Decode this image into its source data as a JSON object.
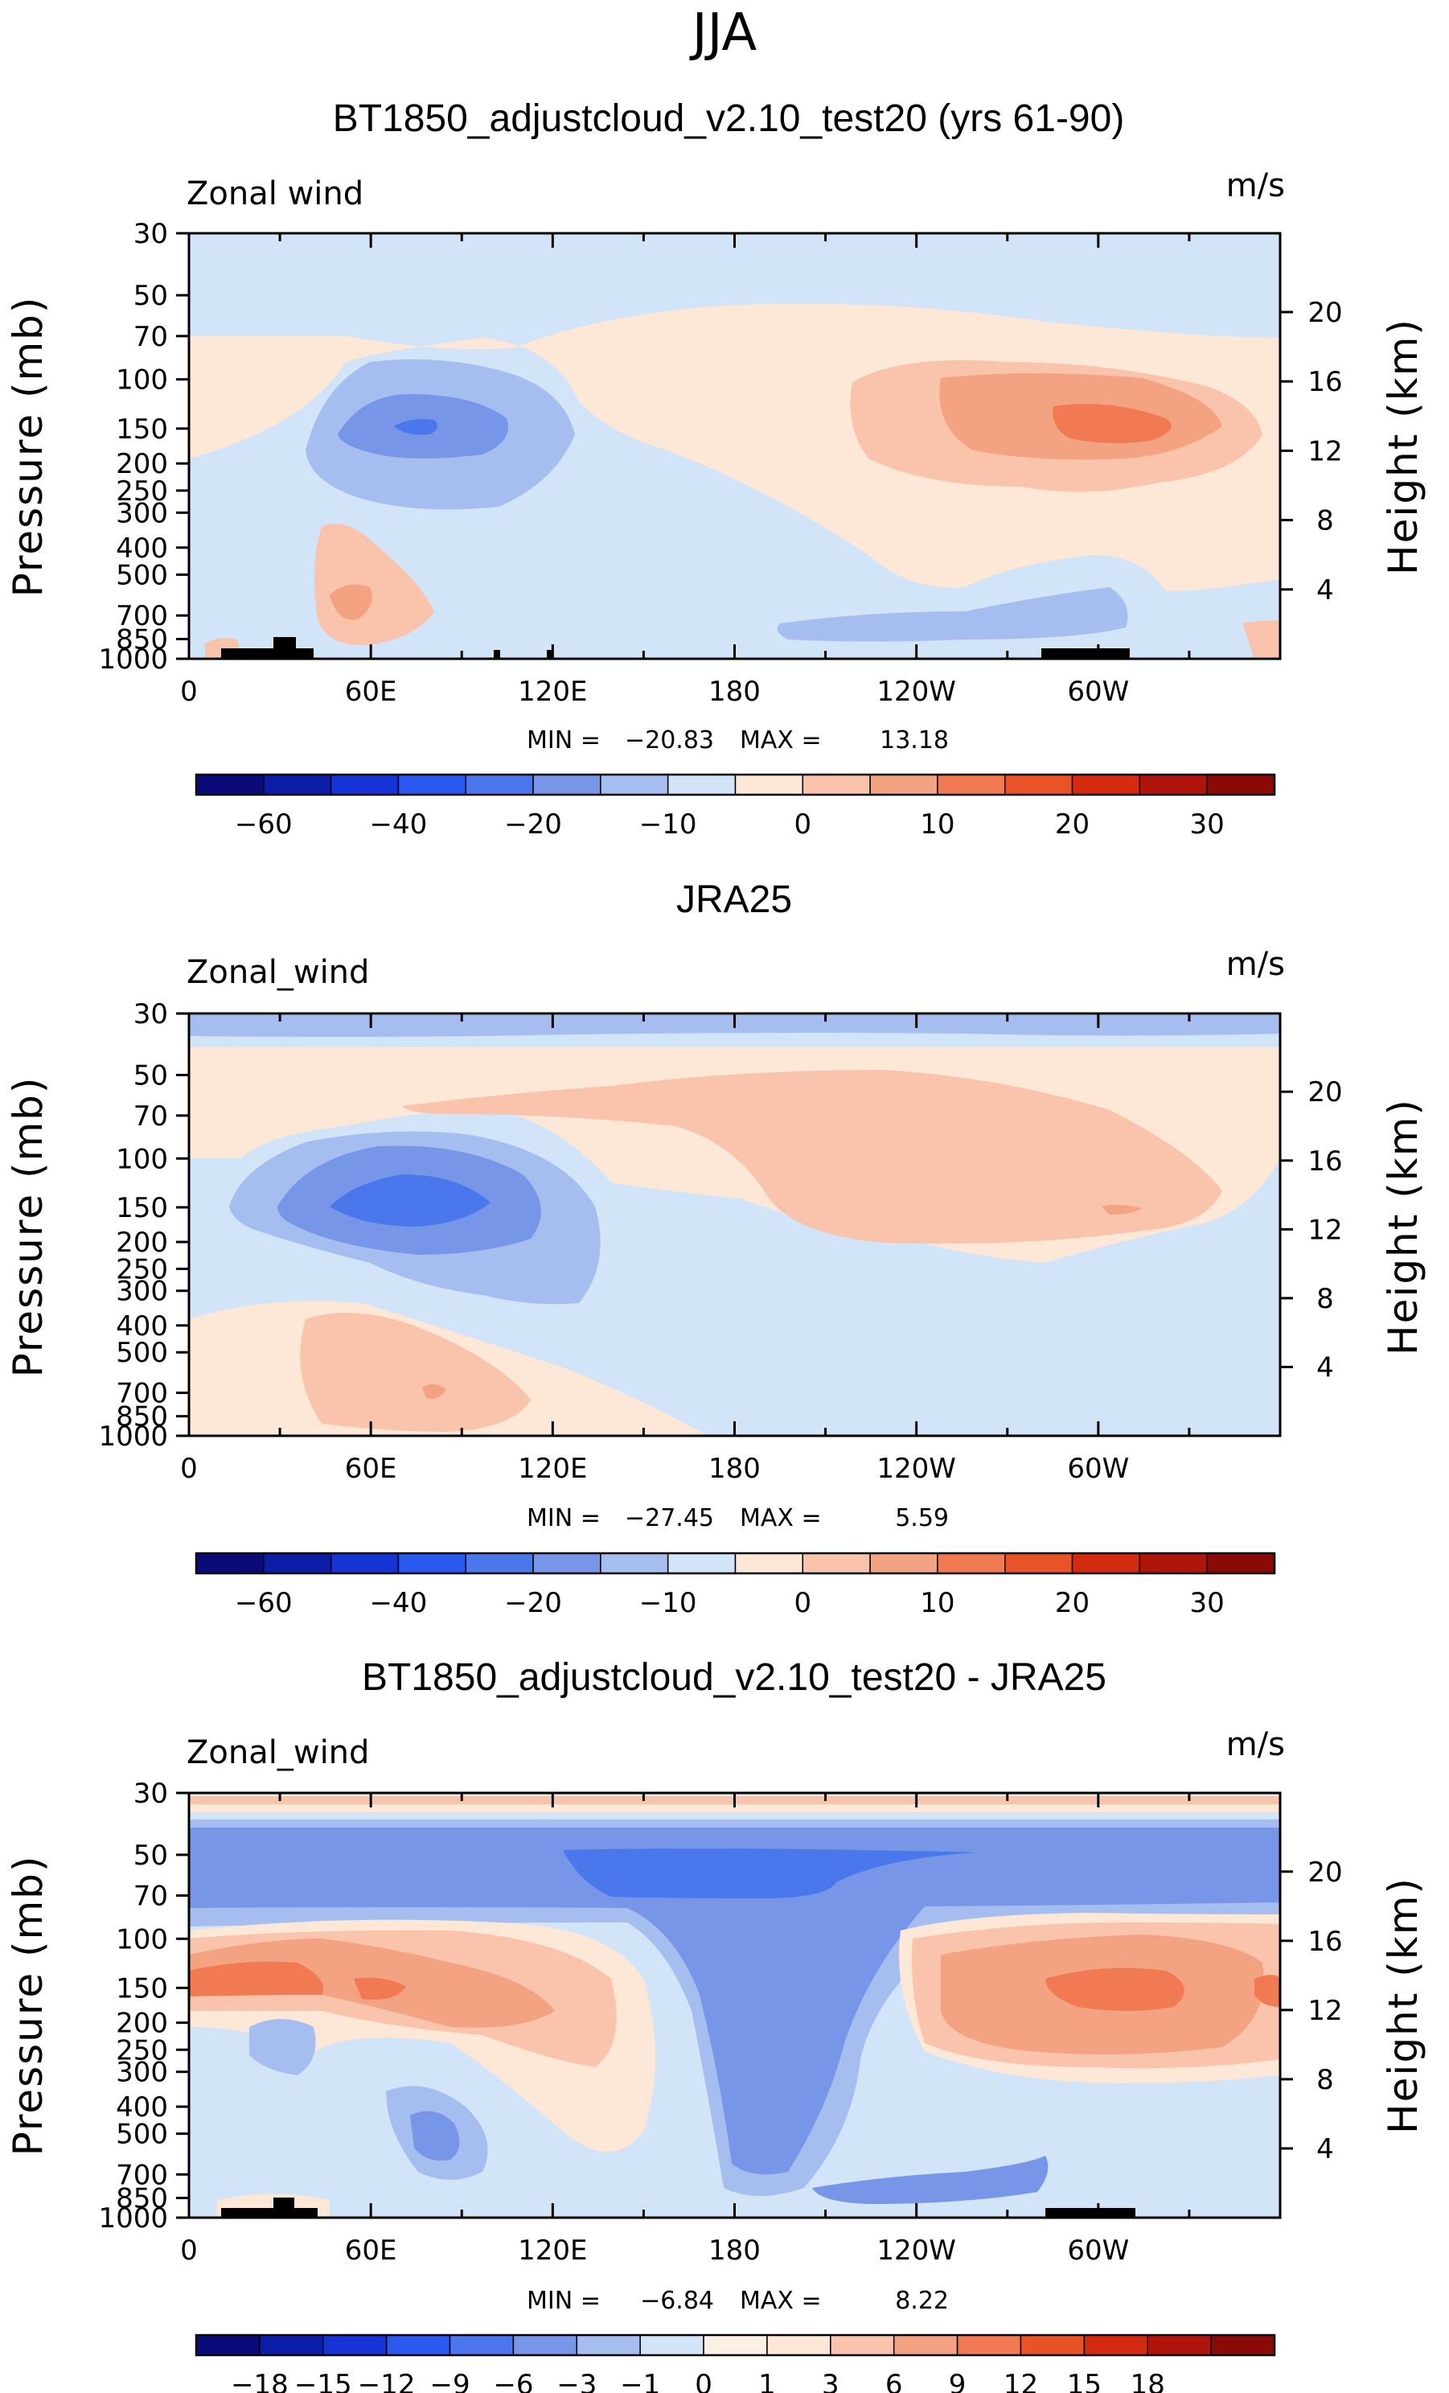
{
  "season_title": "JJA",
  "chart_data": [
    {
      "type": "heatmap",
      "title": "BT1850_adjustcloud_v2.10_test20 (yrs 61-90)",
      "variable_label": "Zonal wind",
      "units": "m/s",
      "ylabel": "Pressure (mb)",
      "ylabel_right": "Height (km)",
      "pressure_ticks": [
        "30",
        "50",
        "70",
        "100",
        "150",
        "200",
        "250",
        "300",
        "400",
        "500",
        "700",
        "850",
        "1000"
      ],
      "pressure_values": [
        30,
        50,
        70,
        100,
        150,
        200,
        250,
        300,
        400,
        500,
        700,
        850,
        1000
      ],
      "height_ticks": [
        "20",
        "16",
        "12",
        "8",
        "4"
      ],
      "height_values": [
        20,
        16,
        12,
        8,
        4
      ],
      "longitude_ticks": [
        "0",
        "60E",
        "120E",
        "180",
        "120W",
        "60W"
      ],
      "longitude_values": [
        0,
        60,
        120,
        180,
        240,
        300
      ],
      "xlim": [
        0,
        360
      ],
      "ylim": [
        1000,
        30
      ],
      "min_label": "MIN =",
      "min": "-20.83",
      "max_label": "MAX =",
      "max": "13.18",
      "colorbar_levels": [
        -70,
        -60,
        -50,
        -40,
        -30,
        -20,
        -15,
        -10,
        -5,
        0,
        5,
        10,
        15,
        20,
        25,
        30
      ],
      "colorbar_tick_labels": [
        "-60",
        "-40",
        "-20",
        "-10",
        "0",
        "10",
        "20",
        "30"
      ],
      "features": [
        {
          "name": "jet-core-easterly",
          "lon": 72,
          "p": 150,
          "value": -20
        },
        {
          "name": "westerly-jet-pacific",
          "lon": 290,
          "p": 150,
          "value": 13
        },
        {
          "name": "lower-westerly-indian",
          "lon": 55,
          "p": 700,
          "value": 8
        }
      ]
    },
    {
      "type": "heatmap",
      "title": "JRA25",
      "variable_label": "Zonal_wind",
      "units": "m/s",
      "ylabel": "Pressure (mb)",
      "ylabel_right": "Height (km)",
      "pressure_ticks": [
        "30",
        "50",
        "70",
        "100",
        "150",
        "200",
        "250",
        "300",
        "400",
        "500",
        "700",
        "850",
        "1000"
      ],
      "pressure_values": [
        30,
        50,
        70,
        100,
        150,
        200,
        250,
        300,
        400,
        500,
        700,
        850,
        1000
      ],
      "height_ticks": [
        "20",
        "16",
        "12",
        "8",
        "4"
      ],
      "height_values": [
        20,
        16,
        12,
        8,
        4
      ],
      "longitude_ticks": [
        "0",
        "60E",
        "120E",
        "180",
        "120W",
        "60W"
      ],
      "longitude_values": [
        0,
        60,
        120,
        180,
        240,
        300
      ],
      "xlim": [
        0,
        360
      ],
      "ylim": [
        1000,
        30
      ],
      "min_label": "MIN =",
      "min": "-27.45",
      "max_label": "MAX =",
      "max": "5.59",
      "colorbar_levels": [
        -70,
        -60,
        -50,
        -40,
        -30,
        -20,
        -15,
        -10,
        -5,
        0,
        5,
        10,
        15,
        20,
        25,
        30
      ],
      "colorbar_tick_labels": [
        "-60",
        "-40",
        "-20",
        "-10",
        "0",
        "10",
        "20",
        "30"
      ],
      "features": [
        {
          "name": "jet-core-easterly",
          "lon": 75,
          "p": 150,
          "value": -27
        },
        {
          "name": "westerly-pacific",
          "lon": 250,
          "p": 150,
          "value": 5
        }
      ]
    },
    {
      "type": "heatmap",
      "title": "BT1850_adjustcloud_v2.10_test20 - JRA25",
      "variable_label": "Zonal_wind",
      "units": "m/s",
      "ylabel": "Pressure (mb)",
      "ylabel_right": "Height (km)",
      "pressure_ticks": [
        "30",
        "50",
        "70",
        "100",
        "150",
        "200",
        "250",
        "300",
        "400",
        "500",
        "700",
        "850",
        "1000"
      ],
      "pressure_values": [
        30,
        50,
        70,
        100,
        150,
        200,
        250,
        300,
        400,
        500,
        700,
        850,
        1000
      ],
      "height_ticks": [
        "20",
        "16",
        "12",
        "8",
        "4"
      ],
      "height_values": [
        20,
        16,
        12,
        8,
        4
      ],
      "longitude_ticks": [
        "0",
        "60E",
        "120E",
        "180",
        "120W",
        "60W"
      ],
      "longitude_values": [
        0,
        60,
        120,
        180,
        240,
        300
      ],
      "xlim": [
        0,
        360
      ],
      "ylim": [
        1000,
        30
      ],
      "min_label": "MIN =",
      "min": "-6.84",
      "max_label": "MAX =",
      "max": "8.22",
      "colorbar_levels": [
        -21,
        -18,
        -15,
        -12,
        -9,
        -6,
        -3,
        -1,
        0,
        1,
        3,
        6,
        9,
        12,
        15,
        18,
        21
      ],
      "colorbar_tick_labels": [
        "-18",
        "-15",
        "-12",
        "-9",
        "-6",
        "-3",
        "-1",
        "0",
        "1",
        "3",
        "6",
        "9",
        "12",
        "15",
        "18"
      ],
      "features": [
        {
          "name": "stratospheric-easterly-bias",
          "lon": 180,
          "p": 60,
          "value": -6
        },
        {
          "name": "upper-westerly-bias-east",
          "lon": 300,
          "p": 150,
          "value": 8
        },
        {
          "name": "upper-westerly-bias-west",
          "lon": 30,
          "p": 150,
          "value": 6
        }
      ]
    }
  ],
  "colors": {
    "cmap_main": [
      "#0a0a78",
      "#0c1ea8",
      "#1634d6",
      "#2a59f0",
      "#4a78ec",
      "#7896e8",
      "#a6bdf0",
      "#d2e4f8",
      "#fde7d6",
      "#f9c4ab",
      "#f3a282",
      "#f17a52",
      "#e95326",
      "#d42a10",
      "#b0150c",
      "#8a0a08"
    ],
    "cmap_diff": [
      "#0a0a78",
      "#0c1ea8",
      "#1634d6",
      "#2a59f0",
      "#4a78ec",
      "#7896e8",
      "#a6bdf0",
      "#d2e4f8",
      "#fdf0e4",
      "#fde7d6",
      "#f9c4ab",
      "#f3a282",
      "#f17a52",
      "#e95326",
      "#d42a10",
      "#b0150c",
      "#8a0a08"
    ],
    "background": "#d2e4f8"
  }
}
